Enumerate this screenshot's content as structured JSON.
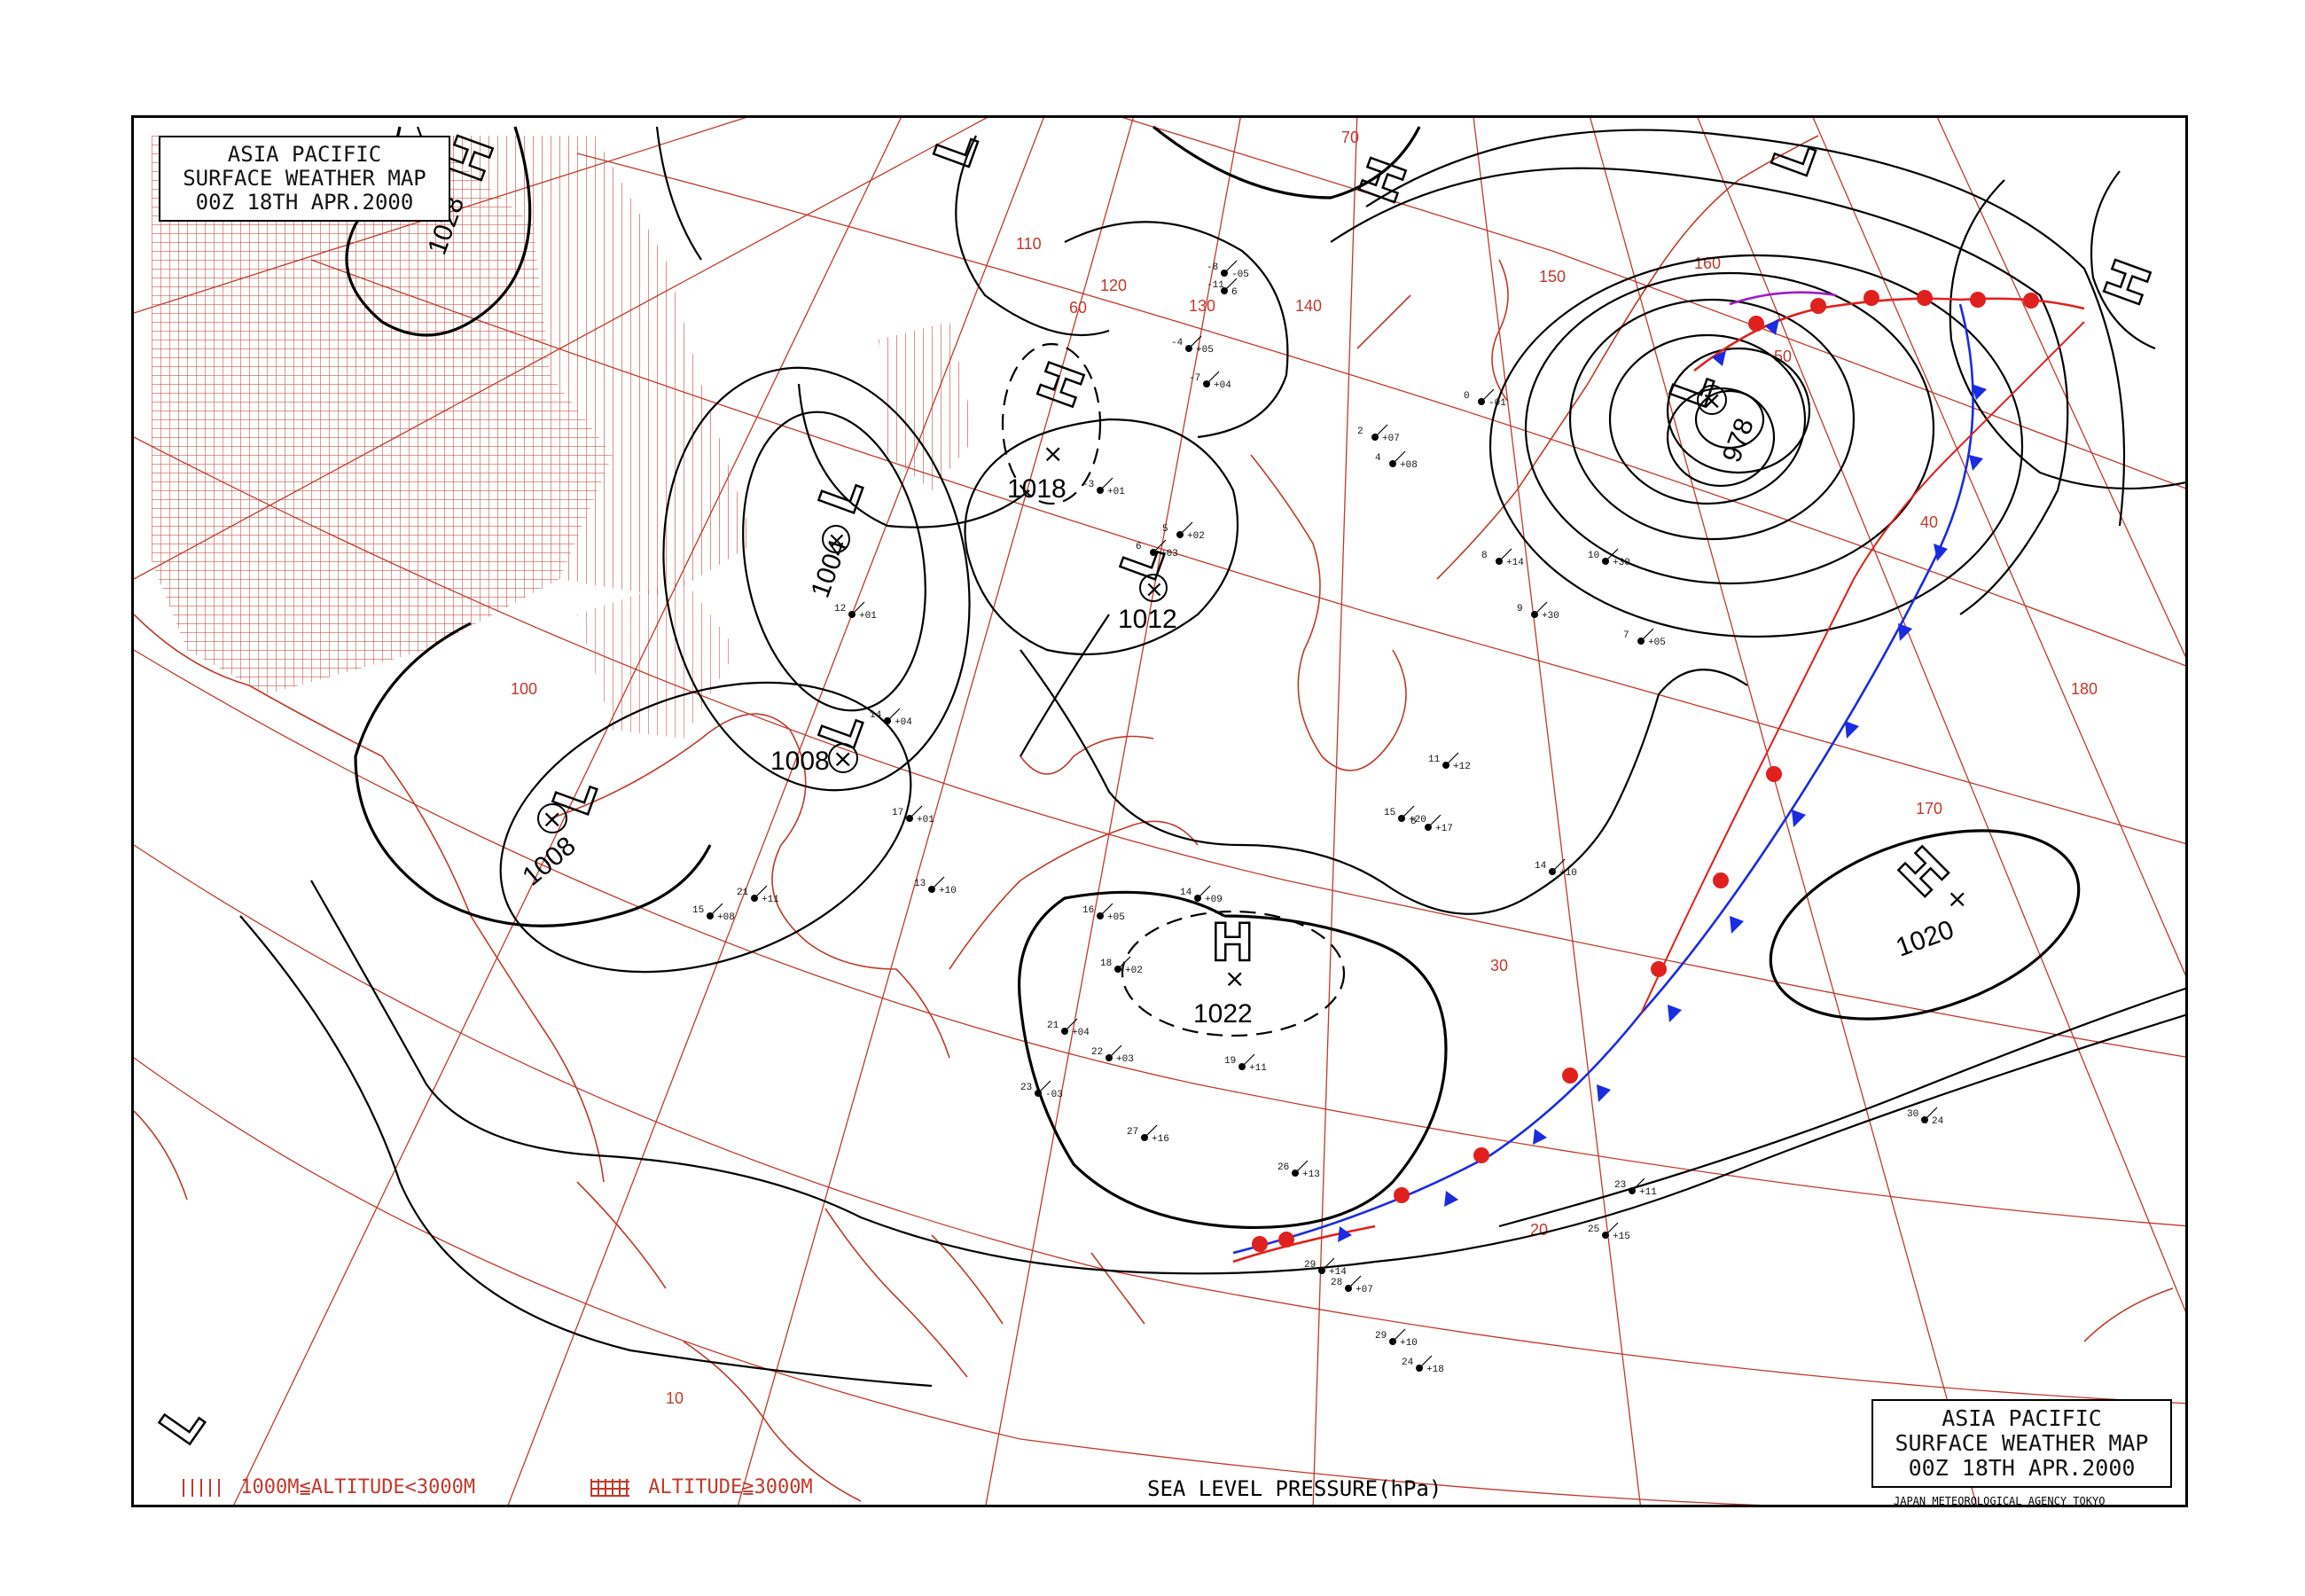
{
  "title_top_left": [
    "ASIA PACIFIC",
    "SURFACE WEATHER MAP",
    "00Z 18TH APR.2000"
  ],
  "title_bottom_right": [
    "ASIA PACIFIC",
    "SURFACE WEATHER MAP",
    "00Z 18TH APR.2000"
  ],
  "agency": "JAPAN METEOROLOGICAL AGENCY TOKYO",
  "legend": {
    "low_altitude": "1000M≦ALTITUDE<3000M",
    "high_altitude": "ALTITUDE≧3000M"
  },
  "caption": "SEA LEVEL PRESSURE(hPa)",
  "colors": {
    "grid": "#c0392b",
    "warm_front": "#e0201c",
    "cold_front": "#1a2be0",
    "isobar": "#000000"
  },
  "pressure_systems": [
    {
      "type": "H",
      "value": "1028"
    },
    {
      "type": "L",
      "value": ""
    },
    {
      "type": "H",
      "value": ""
    },
    {
      "type": "H",
      "value": "1018"
    },
    {
      "type": "L",
      "value": "1004"
    },
    {
      "type": "L",
      "value": "1012"
    },
    {
      "type": "L",
      "value": "1008"
    },
    {
      "type": "L",
      "value": "1008"
    },
    {
      "type": "H",
      "value": "1022"
    },
    {
      "type": "L",
      "value": "978"
    },
    {
      "type": "L",
      "value": ""
    },
    {
      "type": "H",
      "value": ""
    },
    {
      "type": "H",
      "value": "1020"
    },
    {
      "type": "L",
      "value": ""
    }
  ],
  "grid_labels": [
    "70",
    "60",
    "50",
    "40",
    "30",
    "20",
    "10",
    "100",
    "110",
    "120",
    "130",
    "140",
    "150",
    "160",
    "170",
    "180"
  ],
  "stations": [
    {
      "t": "-8",
      "p": "-05"
    },
    {
      "t": "-11",
      "p": "6"
    },
    {
      "t": "-7",
      "p": "+04"
    },
    {
      "t": "-4",
      "p": "+05"
    },
    {
      "t": "5",
      "p": "+02"
    },
    {
      "t": "6",
      "p": "+03"
    },
    {
      "t": "12",
      "p": "+01"
    },
    {
      "t": "14",
      "p": "+04"
    },
    {
      "t": "17",
      "p": "+01"
    },
    {
      "t": "13",
      "p": "+10"
    },
    {
      "t": "15",
      "p": "+08"
    },
    {
      "t": "21",
      "p": "+11"
    },
    {
      "t": "16",
      "p": "+05"
    },
    {
      "t": "18",
      "p": "+02"
    },
    {
      "t": "14",
      "p": "+09"
    },
    {
      "t": "19",
      "p": "+11"
    },
    {
      "t": "23",
      "p": "-03"
    },
    {
      "t": "21",
      "p": "+04"
    },
    {
      "t": "22",
      "p": "+03"
    },
    {
      "t": "27",
      "p": "+16"
    },
    {
      "t": "26",
      "p": "+13"
    },
    {
      "t": "29",
      "p": "+14"
    },
    {
      "t": "28",
      "p": "+07"
    },
    {
      "t": "15",
      "p": "+20"
    },
    {
      "t": "10",
      "p": "+30"
    },
    {
      "t": "8",
      "p": "+14"
    },
    {
      "t": "7",
      "p": "+05"
    },
    {
      "t": "9",
      "p": "+30"
    },
    {
      "t": "4",
      "p": "+08"
    },
    {
      "t": "2",
      "p": "+07"
    },
    {
      "t": "-3",
      "p": "+01"
    },
    {
      "t": "0",
      "p": "-01"
    },
    {
      "t": "11",
      "p": "+12"
    },
    {
      "t": "8",
      "p": "+17"
    },
    {
      "t": "14",
      "p": "+10"
    },
    {
      "t": "25",
      "p": "+15"
    },
    {
      "t": "23",
      "p": "+11"
    },
    {
      "t": "29",
      "p": "+10"
    },
    {
      "t": "24",
      "p": "+18"
    },
    {
      "t": "30",
      "p": "24"
    }
  ]
}
